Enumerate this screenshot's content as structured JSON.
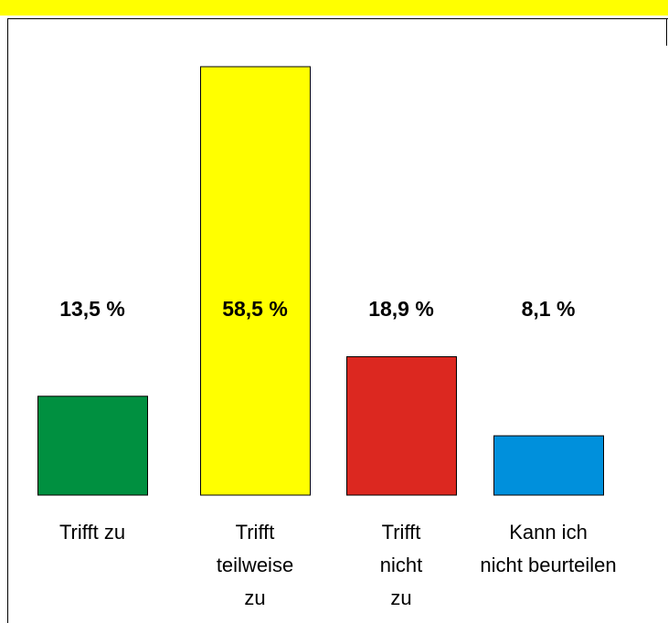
{
  "chart_data": {
    "type": "bar",
    "categories": [
      "Trifft zu",
      "Trifft\nteilweise\nzu",
      "Trifft\nnicht\nzu",
      "Kann ich\nnicht beurteilen"
    ],
    "values": [
      13.5,
      58.5,
      18.9,
      8.1
    ],
    "value_labels": [
      "13,5 %",
      "58,5 %",
      "18,9 %",
      "8,1 %"
    ],
    "colors": [
      "#009040",
      "#ffff00",
      "#dc2820",
      "#0090dc"
    ]
  }
}
